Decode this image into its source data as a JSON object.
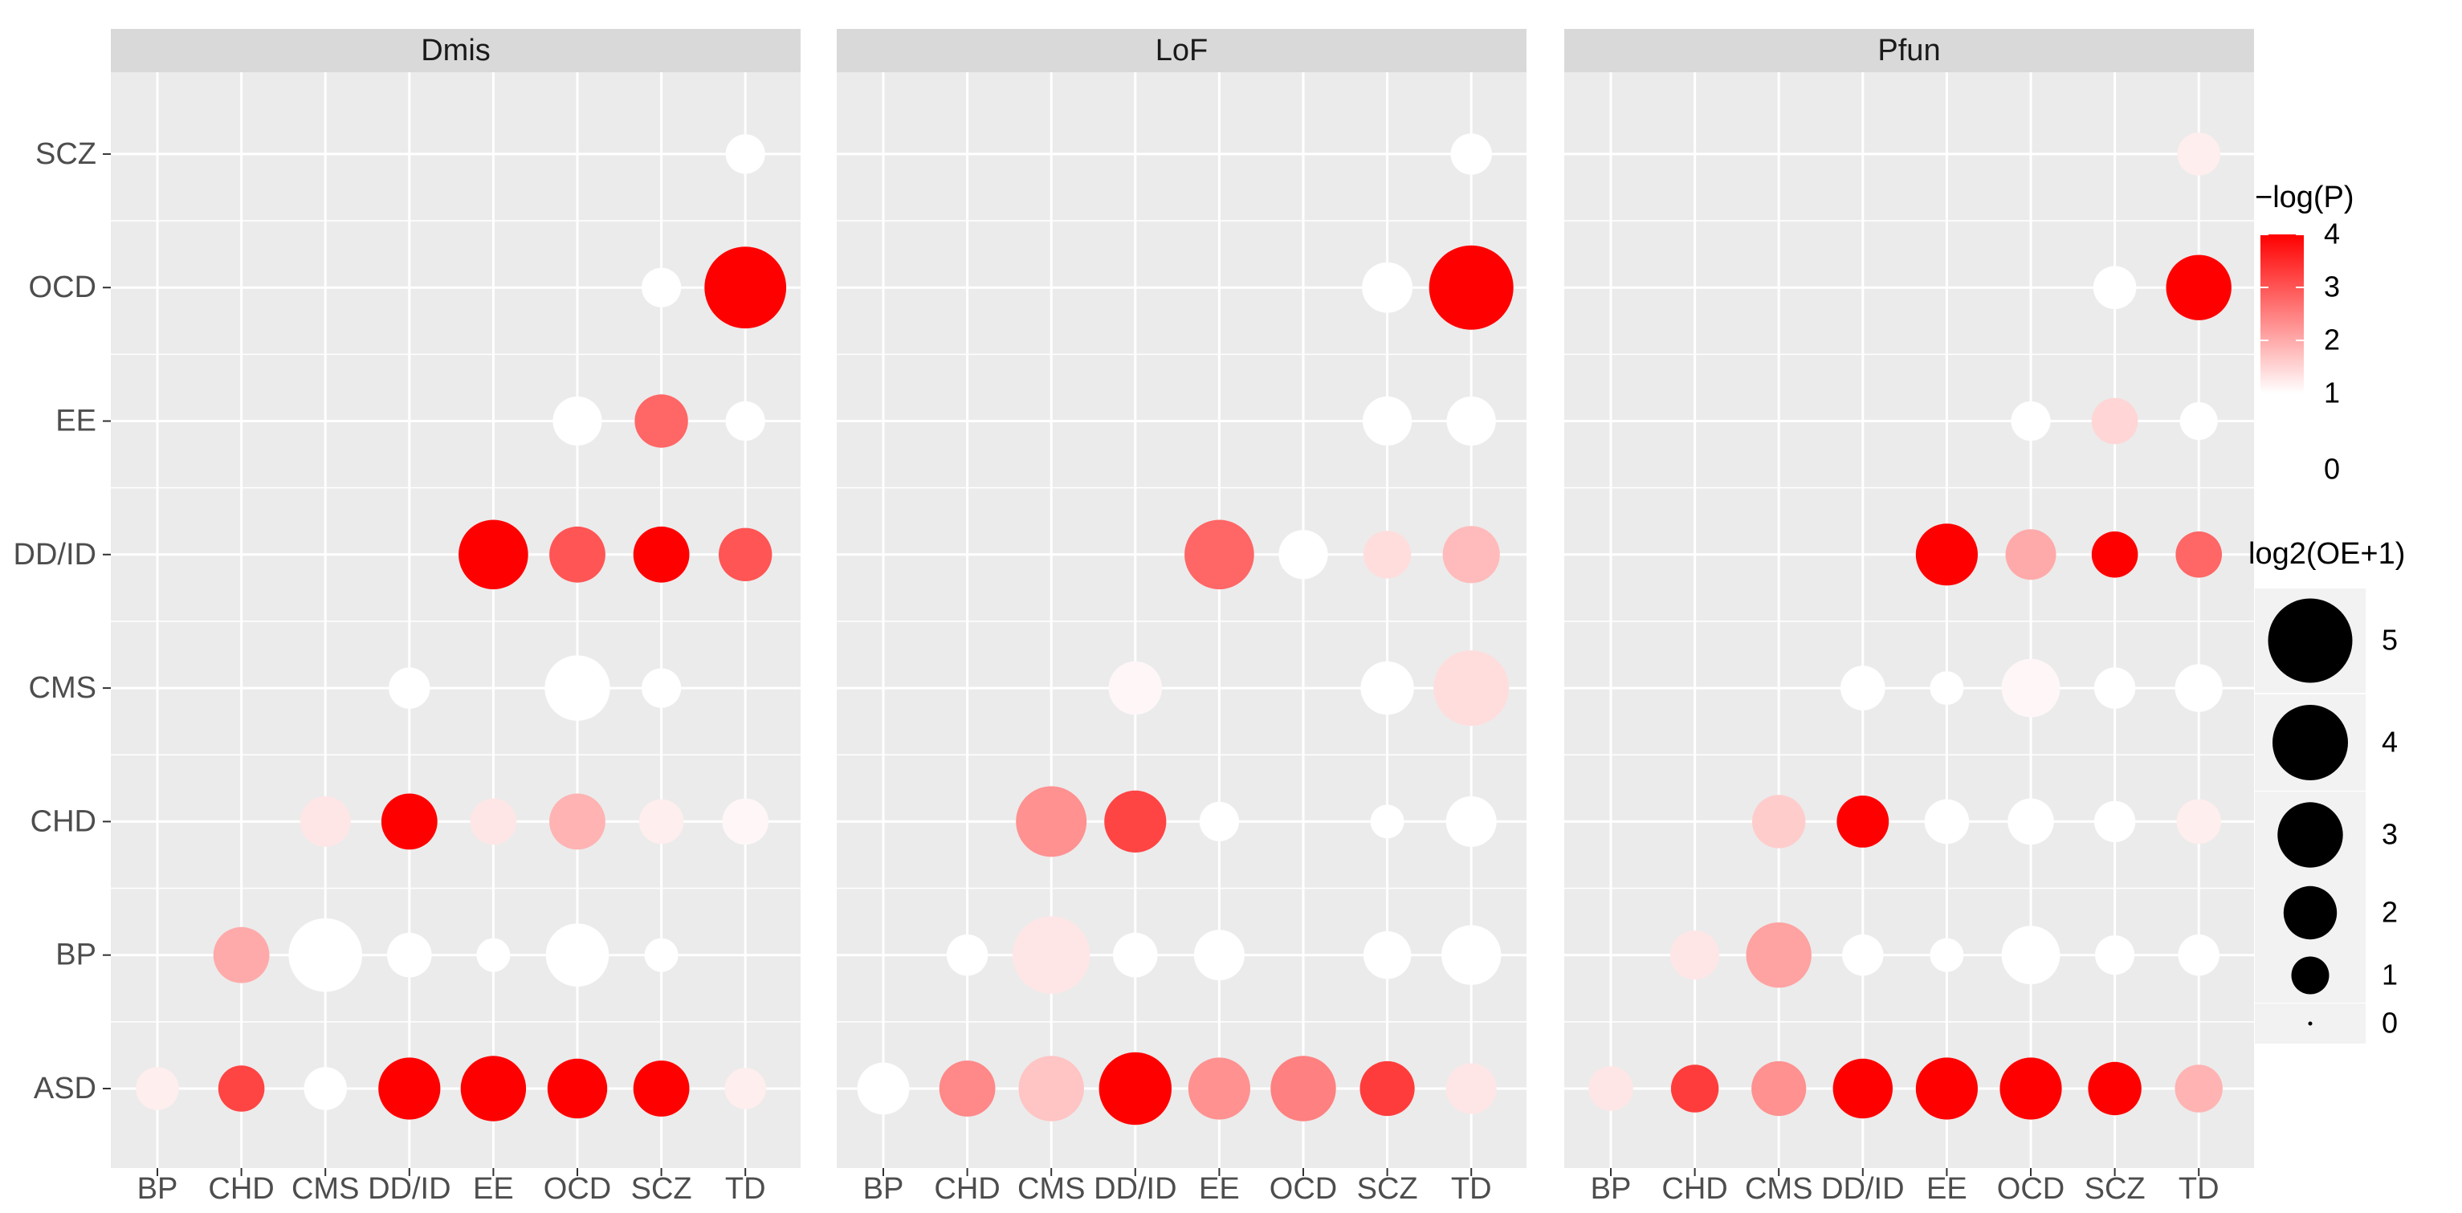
{
  "chart_data": {
    "type": "scatter",
    "subtype": "faceted-dot-matrix",
    "categories": [
      "BP",
      "CHD",
      "CMS",
      "DD/ID",
      "EE",
      "OCD",
      "SCZ",
      "TD"
    ],
    "y_categories": [
      "ASD",
      "BP",
      "CHD",
      "CMS",
      "DD/ID",
      "EE",
      "OCD",
      "SCZ"
    ],
    "y_tick_labels": [
      "ASD",
      "BP",
      "CHD",
      "CMS",
      "DD/ID",
      "EE",
      "OCD",
      "SCZ"
    ],
    "facets": [
      {
        "name": "Dmis",
        "points": [
          {
            "x": "BP",
            "y": "ASD",
            "size": 1.3,
            "neglogp": 1.2
          },
          {
            "x": "CHD",
            "y": "ASD",
            "size": 1.5,
            "neglogp": 3.2
          },
          {
            "x": "CMS",
            "y": "ASD",
            "size": 1.3,
            "neglogp": 0.5
          },
          {
            "x": "DD/ID",
            "y": "ASD",
            "size": 2.7,
            "neglogp": 4
          },
          {
            "x": "EE",
            "y": "ASD",
            "size": 3.0,
            "neglogp": 4
          },
          {
            "x": "OCD",
            "y": "ASD",
            "size": 2.5,
            "neglogp": 4
          },
          {
            "x": "SCZ",
            "y": "ASD",
            "size": 2.2,
            "neglogp": 4
          },
          {
            "x": "TD",
            "y": "ASD",
            "size": 1.2,
            "neglogp": 1.2
          },
          {
            "x": "CHD",
            "y": "BP",
            "size": 2.2,
            "neglogp": 2.0
          },
          {
            "x": "CMS",
            "y": "BP",
            "size": 3.8,
            "neglogp": 0.6
          },
          {
            "x": "DD/ID",
            "y": "BP",
            "size": 1.4,
            "neglogp": 0.5
          },
          {
            "x": "EE",
            "y": "BP",
            "size": 0.8,
            "neglogp": 0.3
          },
          {
            "x": "OCD",
            "y": "BP",
            "size": 2.8,
            "neglogp": 0.6
          },
          {
            "x": "SCZ",
            "y": "BP",
            "size": 0.8,
            "neglogp": 0.3
          },
          {
            "x": "CMS",
            "y": "CHD",
            "size": 1.8,
            "neglogp": 1.3
          },
          {
            "x": "DD/ID",
            "y": "CHD",
            "size": 2.2,
            "neglogp": 4
          },
          {
            "x": "EE",
            "y": "CHD",
            "size": 1.5,
            "neglogp": 1.3
          },
          {
            "x": "OCD",
            "y": "CHD",
            "size": 2.2,
            "neglogp": 1.9
          },
          {
            "x": "SCZ",
            "y": "CHD",
            "size": 1.4,
            "neglogp": 1.2
          },
          {
            "x": "TD",
            "y": "CHD",
            "size": 1.5,
            "neglogp": 1.1
          },
          {
            "x": "DD/ID",
            "y": "CMS",
            "size": 1.2,
            "neglogp": 0.5
          },
          {
            "x": "OCD",
            "y": "CMS",
            "size": 3.0,
            "neglogp": 0.6
          },
          {
            "x": "SCZ",
            "y": "CMS",
            "size": 1.1,
            "neglogp": 0.5
          },
          {
            "x": "EE",
            "y": "DD/ID",
            "size": 3.4,
            "neglogp": 4
          },
          {
            "x": "OCD",
            "y": "DD/ID",
            "size": 2.2,
            "neglogp": 3.0
          },
          {
            "x": "SCZ",
            "y": "DD/ID",
            "size": 2.2,
            "neglogp": 4
          },
          {
            "x": "TD",
            "y": "DD/ID",
            "size": 2.0,
            "neglogp": 3.0
          },
          {
            "x": "OCD",
            "y": "EE",
            "size": 1.7,
            "neglogp": 0.5
          },
          {
            "x": "SCZ",
            "y": "EE",
            "size": 2.0,
            "neglogp": 2.8
          },
          {
            "x": "TD",
            "y": "EE",
            "size": 1.1,
            "neglogp": 0.5
          },
          {
            "x": "SCZ",
            "y": "OCD",
            "size": 1.1,
            "neglogp": 0.5
          },
          {
            "x": "TD",
            "y": "OCD",
            "size": 4.7,
            "neglogp": 4
          },
          {
            "x": "TD",
            "y": "SCZ",
            "size": 1.1,
            "neglogp": 0.5
          }
        ]
      },
      {
        "name": "LoF",
        "points": [
          {
            "x": "BP",
            "y": "ASD",
            "size": 1.9,
            "neglogp": 0.6
          },
          {
            "x": "CHD",
            "y": "ASD",
            "size": 2.2,
            "neglogp": 2.4
          },
          {
            "x": "CMS",
            "y": "ASD",
            "size": 3.0,
            "neglogp": 1.7
          },
          {
            "x": "DD/ID",
            "y": "ASD",
            "size": 3.7,
            "neglogp": 4
          },
          {
            "x": "EE",
            "y": "ASD",
            "size": 2.7,
            "neglogp": 2.3
          },
          {
            "x": "OCD",
            "y": "ASD",
            "size": 3.0,
            "neglogp": 2.5
          },
          {
            "x": "SCZ",
            "y": "ASD",
            "size": 2.1,
            "neglogp": 3.3
          },
          {
            "x": "TD",
            "y": "ASD",
            "size": 1.8,
            "neglogp": 1.3
          },
          {
            "x": "CHD",
            "y": "BP",
            "size": 1.2,
            "neglogp": 0.5
          },
          {
            "x": "CMS",
            "y": "BP",
            "size": 4.2,
            "neglogp": 1.3
          },
          {
            "x": "DD/ID",
            "y": "BP",
            "size": 1.4,
            "neglogp": 0.5
          },
          {
            "x": "EE",
            "y": "BP",
            "size": 1.8,
            "neglogp": 0.5
          },
          {
            "x": "SCZ",
            "y": "BP",
            "size": 1.6,
            "neglogp": 0.5
          },
          {
            "x": "TD",
            "y": "BP",
            "size": 2.5,
            "neglogp": 0.5
          },
          {
            "x": "CMS",
            "y": "CHD",
            "size": 3.5,
            "neglogp": 2.3
          },
          {
            "x": "DD/ID",
            "y": "CHD",
            "size": 2.7,
            "neglogp": 3.2
          },
          {
            "x": "EE",
            "y": "CHD",
            "size": 1.1,
            "neglogp": 0.5
          },
          {
            "x": "SCZ",
            "y": "CHD",
            "size": 0.8,
            "neglogp": 0.3
          },
          {
            "x": "TD",
            "y": "CHD",
            "size": 1.8,
            "neglogp": 0.5
          },
          {
            "x": "DD/ID",
            "y": "CMS",
            "size": 2.0,
            "neglogp": 1.1
          },
          {
            "x": "SCZ",
            "y": "CMS",
            "size": 2.0,
            "neglogp": 0.5
          },
          {
            "x": "TD",
            "y": "CMS",
            "size": 4.0,
            "neglogp": 1.4
          },
          {
            "x": "EE",
            "y": "DD/ID",
            "size": 3.4,
            "neglogp": 2.8
          },
          {
            "x": "OCD",
            "y": "DD/ID",
            "size": 1.7,
            "neglogp": 0.5
          },
          {
            "x": "SCZ",
            "y": "DD/ID",
            "size": 1.6,
            "neglogp": 1.4
          },
          {
            "x": "TD",
            "y": "DD/ID",
            "size": 2.3,
            "neglogp": 1.8
          },
          {
            "x": "SCZ",
            "y": "EE",
            "size": 1.7,
            "neglogp": 0.5
          },
          {
            "x": "TD",
            "y": "EE",
            "size": 1.7,
            "neglogp": 0.5
          },
          {
            "x": "SCZ",
            "y": "OCD",
            "size": 1.8,
            "neglogp": 0.5
          },
          {
            "x": "TD",
            "y": "OCD",
            "size": 5.0,
            "neglogp": 4
          },
          {
            "x": "TD",
            "y": "SCZ",
            "size": 1.2,
            "neglogp": 0.5
          }
        ]
      },
      {
        "name": "Pfun",
        "points": [
          {
            "x": "BP",
            "y": "ASD",
            "size": 1.4,
            "neglogp": 1.3
          },
          {
            "x": "CHD",
            "y": "ASD",
            "size": 1.6,
            "neglogp": 3.3
          },
          {
            "x": "CMS",
            "y": "ASD",
            "size": 2.1,
            "neglogp": 2.3
          },
          {
            "x": "DD/ID",
            "y": "ASD",
            "size": 2.5,
            "neglogp": 4
          },
          {
            "x": "EE",
            "y": "ASD",
            "size": 2.7,
            "neglogp": 4
          },
          {
            "x": "OCD",
            "y": "ASD",
            "size": 2.7,
            "neglogp": 4
          },
          {
            "x": "SCZ",
            "y": "ASD",
            "size": 2.0,
            "neglogp": 4
          },
          {
            "x": "TD",
            "y": "ASD",
            "size": 1.6,
            "neglogp": 1.9
          },
          {
            "x": "CHD",
            "y": "BP",
            "size": 1.7,
            "neglogp": 1.3
          },
          {
            "x": "CMS",
            "y": "BP",
            "size": 3.0,
            "neglogp": 2.1
          },
          {
            "x": "DD/ID",
            "y": "BP",
            "size": 1.2,
            "neglogp": 0.5
          },
          {
            "x": "EE",
            "y": "BP",
            "size": 0.8,
            "neglogp": 0.3
          },
          {
            "x": "OCD",
            "y": "BP",
            "size": 2.4,
            "neglogp": 0.5
          },
          {
            "x": "SCZ",
            "y": "BP",
            "size": 1.1,
            "neglogp": 0.5
          },
          {
            "x": "TD",
            "y": "BP",
            "size": 1.2,
            "neglogp": 0.5
          },
          {
            "x": "CMS",
            "y": "CHD",
            "size": 2.0,
            "neglogp": 1.6
          },
          {
            "x": "DD/ID",
            "y": "CHD",
            "size": 1.9,
            "neglogp": 4
          },
          {
            "x": "EE",
            "y": "CHD",
            "size": 1.4,
            "neglogp": 0.5
          },
          {
            "x": "OCD",
            "y": "CHD",
            "size": 1.5,
            "neglogp": 0.5
          },
          {
            "x": "SCZ",
            "y": "CHD",
            "size": 1.2,
            "neglogp": 0.5
          },
          {
            "x": "TD",
            "y": "CHD",
            "size": 1.4,
            "neglogp": 1.2
          },
          {
            "x": "DD/ID",
            "y": "CMS",
            "size": 1.4,
            "neglogp": 0.5
          },
          {
            "x": "EE",
            "y": "CMS",
            "size": 0.8,
            "neglogp": 0.3
          },
          {
            "x": "OCD",
            "y": "CMS",
            "size": 2.4,
            "neglogp": 1.1
          },
          {
            "x": "SCZ",
            "y": "CMS",
            "size": 1.2,
            "neglogp": 0.5
          },
          {
            "x": "TD",
            "y": "CMS",
            "size": 1.6,
            "neglogp": 0.5
          },
          {
            "x": "EE",
            "y": "DD/ID",
            "size": 2.7,
            "neglogp": 4
          },
          {
            "x": "OCD",
            "y": "DD/ID",
            "size": 1.8,
            "neglogp": 2.0
          },
          {
            "x": "SCZ",
            "y": "DD/ID",
            "size": 1.5,
            "neglogp": 4
          },
          {
            "x": "TD",
            "y": "DD/ID",
            "size": 1.5,
            "neglogp": 2.8
          },
          {
            "x": "OCD",
            "y": "EE",
            "size": 1.1,
            "neglogp": 0.5
          },
          {
            "x": "SCZ",
            "y": "EE",
            "size": 1.5,
            "neglogp": 1.5
          },
          {
            "x": "TD",
            "y": "EE",
            "size": 1.0,
            "neglogp": 0.5
          },
          {
            "x": "SCZ",
            "y": "OCD",
            "size": 1.3,
            "neglogp": 0.5
          },
          {
            "x": "TD",
            "y": "OCD",
            "size": 3.0,
            "neglogp": 4
          },
          {
            "x": "TD",
            "y": "SCZ",
            "size": 1.3,
            "neglogp": 1.2
          }
        ]
      }
    ],
    "legends": {
      "color": {
        "title": "−log(P)",
        "labels": [
          "4",
          "3",
          "2",
          "1",
          "0"
        ],
        "values": [
          4,
          3,
          2,
          1,
          0
        ],
        "low_color": "#ffffff",
        "high_color": "#ff0000"
      },
      "size": {
        "title": "log2(OE+1)",
        "labels": [
          "5",
          "4",
          "3",
          "2",
          "1",
          "0"
        ],
        "values": [
          5,
          4,
          3,
          2,
          1,
          0
        ]
      }
    },
    "xlabel": "",
    "ylabel": "",
    "grid": true
  },
  "style": {
    "panel_background": "#ebebeb",
    "strip_background": "#d9d9d9",
    "grid_color": "#ffffff",
    "legend_key_background": "#f2f2f2"
  }
}
